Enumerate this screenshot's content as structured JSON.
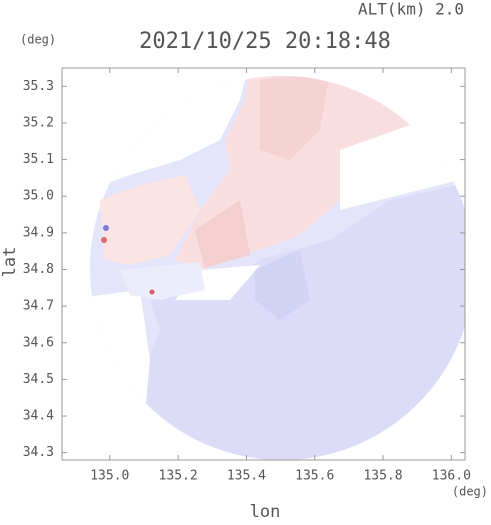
{
  "chart_data": {
    "type": "map",
    "title": "2021/10/25 20:18:48",
    "subtitle": "ALT(km) 2.0",
    "y_unit": "(deg)",
    "x_unit": "(deg)",
    "x_label": "lon",
    "y_label": "lat",
    "xlim": [
      134.86,
      136.04
    ],
    "ylim": [
      34.28,
      35.35
    ],
    "xticks": [
      {
        "value": 135,
        "label": "135.0"
      },
      135.2,
      135.4,
      135.6,
      135.8,
      {
        "value": 136,
        "label": "136.0"
      }
    ],
    "yticks": [
      35.3,
      35.2,
      35.1,
      {
        "value": 35,
        "label": "35.0"
      },
      34.9,
      34.8,
      34.7,
      34.6,
      34.5,
      34.4,
      34.3
    ]
  }
}
